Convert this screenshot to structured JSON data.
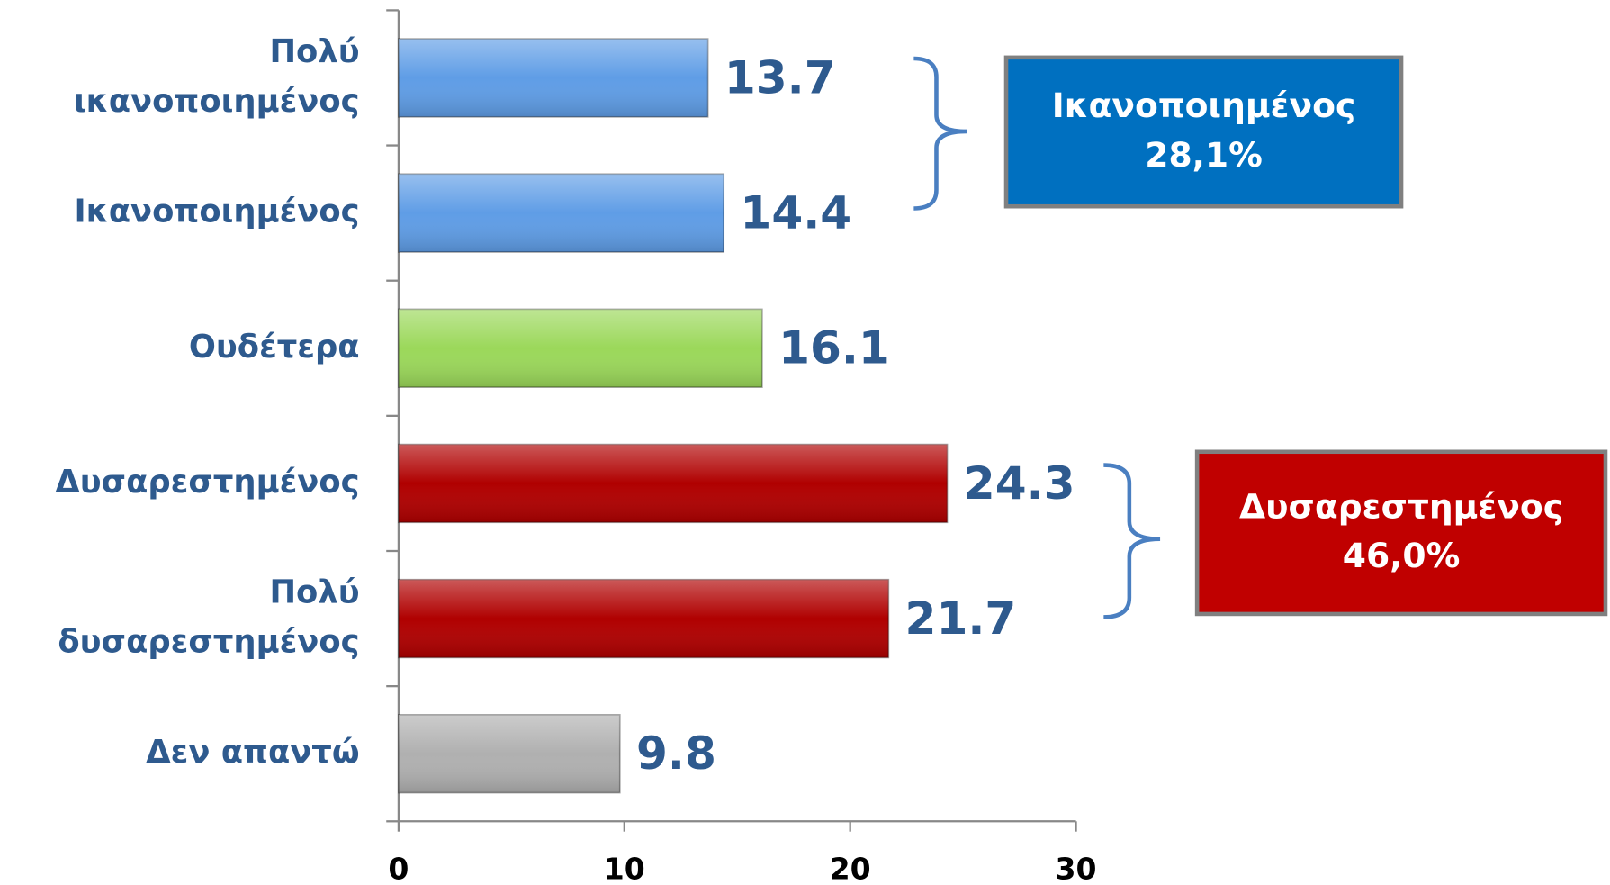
{
  "chart_data": {
    "type": "bar",
    "orientation": "horizontal",
    "categories": [
      "Πολύ\nικανοποιημένος",
      "Ικανοποιημένος",
      "Ουδέτερα",
      "Δυσαρεστημένος",
      "Πολύ\nδυσαρεστημένος",
      "Δεν απαντώ"
    ],
    "values": [
      13.7,
      14.4,
      16.1,
      24.3,
      21.7,
      9.8
    ],
    "colors": [
      "#5f9de6",
      "#5f9de6",
      "#9bd85a",
      "#b00000",
      "#b00000",
      "#b0b0b0"
    ],
    "xlim": [
      0,
      30
    ],
    "xticks": [
      0,
      10,
      20,
      30
    ],
    "annotations": [
      {
        "text": "Ικανοποιημένος\n28,1%",
        "color": "#0070c0"
      },
      {
        "text": "Δυσαρεστημένος\n46,0%",
        "color": "#c00000"
      }
    ]
  }
}
